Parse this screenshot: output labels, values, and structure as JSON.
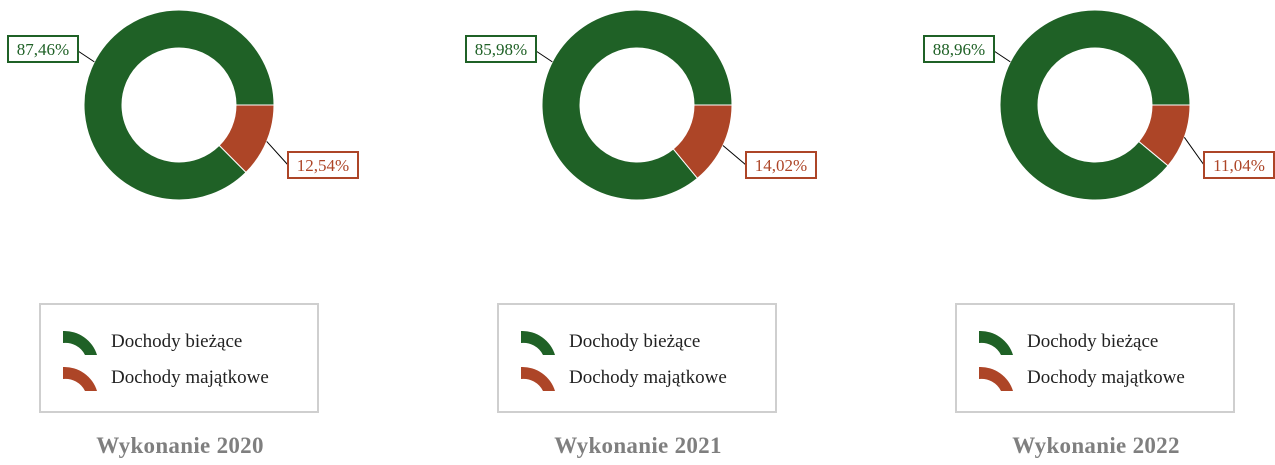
{
  "colors": {
    "current": "#1f6126",
    "capital": "#ad4527"
  },
  "legend": {
    "current_label": "Dochody bieżące",
    "capital_label": "Dochody majątkowe"
  },
  "chart_data": [
    {
      "type": "pie",
      "title": "Wykonanie 2020",
      "categories": [
        "Dochody bieżące",
        "Dochody majątkowe"
      ],
      "values": [
        87.46,
        12.54
      ],
      "value_labels": [
        "87,46%",
        "12,54%"
      ],
      "donut": true,
      "legend_position": "bottom"
    },
    {
      "type": "pie",
      "title": "Wykonanie 2021",
      "categories": [
        "Dochody bieżące",
        "Dochody majątkowe"
      ],
      "values": [
        85.98,
        14.02
      ],
      "value_labels": [
        "85,98%",
        "14,02%"
      ],
      "donut": true,
      "legend_position": "bottom"
    },
    {
      "type": "pie",
      "title": "Wykonanie 2022",
      "categories": [
        "Dochody bieżące",
        "Dochody majątkowe"
      ],
      "values": [
        88.96,
        11.04
      ],
      "value_labels": [
        "88,96%",
        "11,04%"
      ],
      "donut": true,
      "legend_position": "bottom"
    }
  ]
}
